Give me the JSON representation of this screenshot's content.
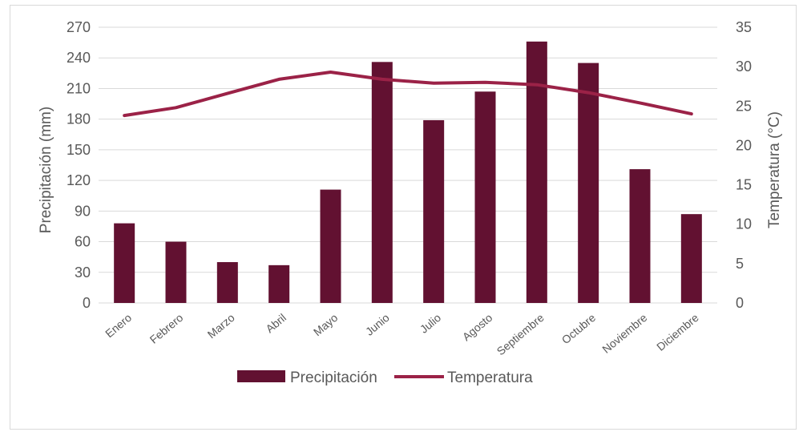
{
  "chart_data": {
    "type": "bar",
    "categories": [
      "Enero",
      "Febrero",
      "Marzo",
      "Abril",
      "Mayo",
      "Junio",
      "Julio",
      "Agosto",
      "Septiembre",
      "Octubre",
      "Noviembre",
      "Diciembre"
    ],
    "series": [
      {
        "name": "Precipitación",
        "type": "bar",
        "axis": "left",
        "values": [
          78,
          60,
          40,
          37,
          111,
          236,
          179,
          207,
          256,
          235,
          131,
          87
        ]
      },
      {
        "name": "Temperatura",
        "type": "line",
        "axis": "right",
        "values": [
          23.8,
          24.8,
          26.6,
          28.4,
          29.3,
          28.4,
          27.9,
          28.0,
          27.7,
          26.7,
          25.4,
          24.0
        ]
      }
    ],
    "ylabel": "Precipitación (mm)",
    "y2label": "Temperatura (°C)",
    "ylim": [
      0,
      270
    ],
    "y2lim": [
      0,
      35
    ],
    "yticks": [
      "0",
      "30",
      "60",
      "90",
      "120",
      "150",
      "180",
      "210",
      "240",
      "270"
    ],
    "y2ticks": [
      "0",
      "5",
      "10",
      "15",
      "20",
      "25",
      "30",
      "35"
    ],
    "grid": true,
    "legend_position": "bottom",
    "colors": {
      "bar": "#621131",
      "line": "#9b2247",
      "grid": "#d9d9d9",
      "text": "#595959"
    }
  }
}
